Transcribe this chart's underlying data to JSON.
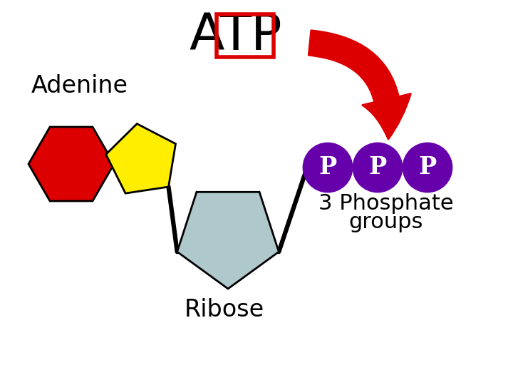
{
  "bg_color": "#ffffff",
  "adenine_label": "Adenine",
  "ribose_label": "Ribose",
  "phosphate_label_line1": "3 Phosphate",
  "phosphate_label_line2": "groups",
  "hex_color": "#dd0000",
  "pent_yellow_color": "#ffee00",
  "pent_blue_color": "#afc8cc",
  "phosphate_color": "#6600aa",
  "phosphate_text_color": "#ffffff",
  "arrow_color": "#dd0000",
  "bond_color": "#000000",
  "title_box_color": "#dd0000",
  "label_fontsize": 24,
  "phosphate_fontsize": 22,
  "atp_fontsize": 52,
  "p_fontsize": 24
}
